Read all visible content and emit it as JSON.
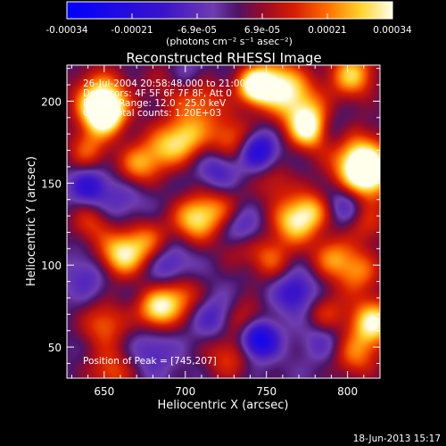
{
  "chart_data": {
    "type": "heatmap",
    "title": "Reconstructed RHESSI Image",
    "xlabel": "Heliocentric X (arcsec)",
    "ylabel": "Heliocentric Y (arcsec)",
    "xlim": [
      627,
      820
    ],
    "ylim": [
      31,
      222
    ],
    "xticks": [
      650,
      700,
      750,
      800
    ],
    "yticks": [
      50,
      100,
      150,
      200
    ],
    "colorbar": {
      "range": [
        -0.00034,
        0.00034
      ],
      "tick_labels": [
        "-0.00034",
        "-0.00021",
        "-6.9e-05",
        "6.9e-05",
        "0.00021",
        "0.00034"
      ],
      "unit_label": "(photons cm⁻² s⁻¹ asec⁻²)"
    },
    "annotations": [
      "26-Jul-2004 20:58:48.000 to 21:00:08.000",
      "Detectors: 4F 5F 6F 7F 8F, Att 0",
      "Energy Range: 12.0 - 25.0 keV",
      "Clean    Total counts: 1.20E+03"
    ],
    "peak_label": "Position of Peak = [745,207]",
    "peak": [
      745,
      207
    ],
    "blobs": [
      {
        "x": 650,
        "y": 192,
        "v": 1.0,
        "s": 9
      },
      {
        "x": 648,
        "y": 202,
        "v": 0.8,
        "s": 12
      },
      {
        "x": 743,
        "y": 209,
        "v": 1.0,
        "s": 8
      },
      {
        "x": 757,
        "y": 211,
        "v": 0.75,
        "s": 11
      },
      {
        "x": 777,
        "y": 183,
        "v": 0.95,
        "s": 9
      },
      {
        "x": 770,
        "y": 198,
        "v": 0.6,
        "s": 12
      },
      {
        "x": 812,
        "y": 155,
        "v": 1.0,
        "s": 11
      },
      {
        "x": 806,
        "y": 165,
        "v": 0.7,
        "s": 13
      },
      {
        "x": 803,
        "y": 216,
        "v": 0.8,
        "s": 10
      },
      {
        "x": 693,
        "y": 212,
        "v": 0.4,
        "s": 11
      },
      {
        "x": 710,
        "y": 200,
        "v": 0.5,
        "s": 11
      },
      {
        "x": 700,
        "y": 178,
        "v": 0.7,
        "s": 10
      },
      {
        "x": 685,
        "y": 170,
        "v": 0.55,
        "s": 10
      },
      {
        "x": 670,
        "y": 160,
        "v": 0.6,
        "s": 9
      },
      {
        "x": 728,
        "y": 177,
        "v": 0.55,
        "s": 10
      },
      {
        "x": 640,
        "y": 170,
        "v": 0.5,
        "s": 9
      },
      {
        "x": 706,
        "y": 128,
        "v": 0.8,
        "s": 10
      },
      {
        "x": 722,
        "y": 134,
        "v": 0.45,
        "s": 10
      },
      {
        "x": 660,
        "y": 106,
        "v": 0.85,
        "s": 10
      },
      {
        "x": 676,
        "y": 114,
        "v": 0.55,
        "s": 10
      },
      {
        "x": 642,
        "y": 126,
        "v": 0.45,
        "s": 9
      },
      {
        "x": 683,
        "y": 73,
        "v": 0.9,
        "s": 9
      },
      {
        "x": 697,
        "y": 82,
        "v": 0.55,
        "s": 9
      },
      {
        "x": 650,
        "y": 64,
        "v": 0.55,
        "s": 10
      },
      {
        "x": 654,
        "y": 35,
        "v": 0.5,
        "s": 10
      },
      {
        "x": 767,
        "y": 126,
        "v": 0.8,
        "s": 10
      },
      {
        "x": 779,
        "y": 134,
        "v": 0.55,
        "s": 9
      },
      {
        "x": 752,
        "y": 104,
        "v": 0.5,
        "s": 9
      },
      {
        "x": 790,
        "y": 105,
        "v": 0.55,
        "s": 9
      },
      {
        "x": 806,
        "y": 96,
        "v": 0.6,
        "s": 10
      },
      {
        "x": 816,
        "y": 65,
        "v": 0.95,
        "s": 10
      },
      {
        "x": 805,
        "y": 45,
        "v": 0.55,
        "s": 10
      },
      {
        "x": 787,
        "y": 70,
        "v": 0.45,
        "s": 9
      },
      {
        "x": 737,
        "y": 66,
        "v": 0.45,
        "s": 9
      },
      {
        "x": 726,
        "y": 44,
        "v": 0.45,
        "s": 10
      },
      {
        "x": 755,
        "y": 150,
        "v": 0.35,
        "s": 9
      },
      {
        "x": 812,
        "y": 125,
        "v": 0.4,
        "s": 9
      },
      {
        "x": 732,
        "y": 112,
        "v": 0.35,
        "s": 9
      },
      {
        "x": 660,
        "y": 140,
        "v": -0.25,
        "s": 12
      },
      {
        "x": 745,
        "y": 55,
        "v": -0.95,
        "s": 8
      },
      {
        "x": 700,
        "y": 215,
        "v": -0.45,
        "s": 9
      },
      {
        "x": 745,
        "y": 170,
        "v": -0.7,
        "s": 8
      },
      {
        "x": 733,
        "y": 122,
        "v": -0.5,
        "s": 9
      },
      {
        "x": 690,
        "y": 100,
        "v": -0.4,
        "s": 10
      },
      {
        "x": 798,
        "y": 138,
        "v": -0.45,
        "s": 9
      },
      {
        "x": 640,
        "y": 93,
        "v": -0.3,
        "s": 10
      },
      {
        "x": 768,
        "y": 83,
        "v": -0.5,
        "s": 9
      },
      {
        "x": 718,
        "y": 68,
        "v": -0.35,
        "s": 9
      },
      {
        "x": 640,
        "y": 148,
        "v": -0.5,
        "s": 8
      },
      {
        "x": 680,
        "y": 48,
        "v": -0.3,
        "s": 10
      },
      {
        "x": 790,
        "y": 182,
        "v": -0.35,
        "s": 8
      },
      {
        "x": 720,
        "y": 158,
        "v": -0.4,
        "s": 9
      },
      {
        "x": 785,
        "y": 55,
        "v": -0.3,
        "s": 9
      }
    ]
  },
  "footer_date": "18-Jun-2013 15:17"
}
